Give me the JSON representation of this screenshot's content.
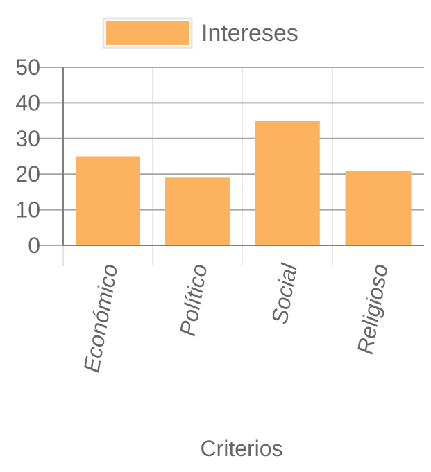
{
  "chart_data": {
    "type": "bar",
    "categories": [
      "Económico",
      "Político",
      "Social",
      "Religioso"
    ],
    "series": [
      {
        "name": "Intereses",
        "values": [
          25,
          19,
          35,
          21
        ],
        "color": "#FDB25E"
      }
    ],
    "xlabel": "Criterios",
    "ylabel": "",
    "ylim": [
      0,
      50
    ],
    "yticks": [
      0,
      10,
      20,
      30,
      40,
      50
    ],
    "grid": true,
    "legend_position": "top"
  }
}
